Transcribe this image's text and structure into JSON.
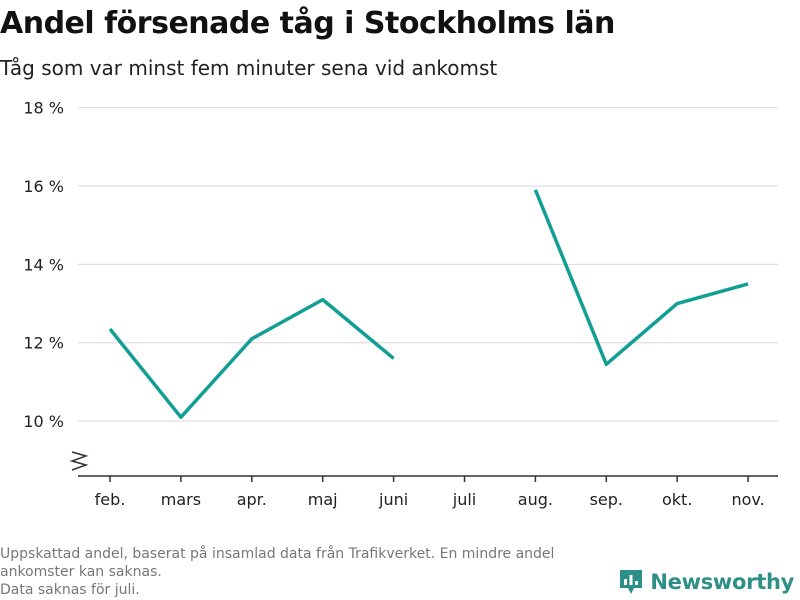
{
  "chart_data": {
    "type": "line",
    "title": "Andel försenade tåg i Stockholms län",
    "subtitle": "Tåg som var minst fem minuter sena vid ankomst",
    "categories": [
      "feb.",
      "mars",
      "apr.",
      "maj",
      "juni",
      "juli",
      "aug.",
      "sep.",
      "okt.",
      "nov."
    ],
    "series": [
      {
        "values": [
          12.35,
          10.1,
          12.1,
          13.1,
          11.6,
          null,
          15.9,
          11.45,
          13.0,
          13.5
        ]
      }
    ],
    "y_ticks": [
      10,
      12,
      14,
      16,
      18
    ],
    "y_tick_labels": [
      "10 %",
      "12 %",
      "14 %",
      "16 %",
      "18 %"
    ],
    "ylim": [
      8.6,
      18.5
    ],
    "y_axis_break": true,
    "grid": true,
    "line_color": "#119e94"
  },
  "footer": {
    "note_line1": "Uppskattad andel, baserat på insamlad data från Trafikverket. En mindre andel",
    "note_line2": "ankomster kan saknas.",
    "note_line3": "Data saknas för juli."
  },
  "brand": {
    "name": "Newsworthy",
    "color": "#2e8f88",
    "icon": "bar-chart-icon"
  }
}
